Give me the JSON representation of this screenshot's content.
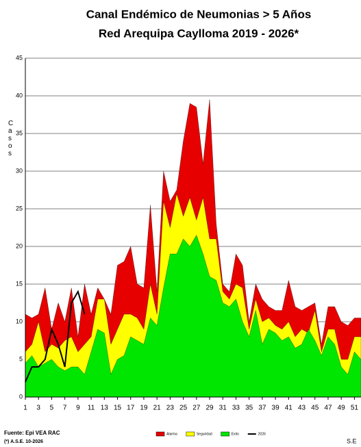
{
  "chart_data": {
    "type": "area",
    "title": "Canal Endémico de Neumonias > 5 Años",
    "subtitle": "Red Arequipa Caylloma 2019 - 2026*",
    "y_label": "Casos",
    "x_label": "S.E",
    "source": "Fuente: Epi VEA RAC",
    "note": "(*) A.S.E. 10-2026",
    "x": [
      1,
      2,
      3,
      4,
      5,
      6,
      7,
      8,
      9,
      10,
      11,
      12,
      13,
      14,
      15,
      16,
      17,
      18,
      19,
      20,
      21,
      22,
      23,
      24,
      25,
      26,
      27,
      28,
      29,
      30,
      31,
      32,
      33,
      34,
      35,
      36,
      37,
      38,
      39,
      40,
      41,
      42,
      43,
      44,
      45,
      46,
      47,
      48,
      49,
      50,
      51,
      52
    ],
    "xlim": [
      1,
      52
    ],
    "xticks": [
      1,
      3,
      5,
      7,
      9,
      11,
      13,
      15,
      17,
      19,
      21,
      23,
      25,
      27,
      29,
      31,
      33,
      35,
      37,
      39,
      41,
      43,
      45,
      47,
      49,
      51
    ],
    "ylim": [
      0,
      45
    ],
    "yticks": [
      0,
      5,
      10,
      15,
      20,
      25,
      30,
      35,
      40,
      45
    ],
    "grid": true,
    "series": [
      {
        "name": "Alarma",
        "color": "#e60000",
        "values": [
          11,
          10.5,
          11,
          14.5,
          9,
          12.5,
          10,
          14.5,
          8,
          15,
          11,
          14.5,
          13,
          11,
          17.5,
          18,
          20,
          15,
          14.5,
          25.5,
          14,
          30,
          26,
          27.5,
          34,
          39,
          38.5,
          31,
          39.5,
          23,
          15,
          14,
          19,
          17.5,
          10,
          15,
          13,
          12,
          11.5,
          11.5,
          15.5,
          12,
          11.5,
          12,
          12.5,
          7,
          12,
          12,
          10,
          9.5,
          10.5,
          10.5
        ]
      },
      {
        "name": "Seguridad",
        "color": "#ffff00",
        "values": [
          6,
          7,
          10,
          6,
          7,
          6.5,
          7.5,
          8,
          6,
          7,
          8,
          13,
          13,
          7,
          9,
          11,
          11,
          10.5,
          9,
          15,
          11,
          26,
          22.5,
          27,
          24,
          26.5,
          23.5,
          26.5,
          21,
          21,
          14,
          13,
          15,
          14.5,
          9,
          13,
          10,
          10.5,
          9.5,
          9,
          10,
          8,
          9,
          8.5,
          11.5,
          6,
          9,
          9,
          5,
          5,
          8,
          8
        ]
      },
      {
        "name": "Exito",
        "color": "#00e600",
        "values": [
          4.5,
          5.5,
          4,
          4.5,
          5,
          4,
          3.5,
          4,
          4,
          3,
          6,
          9,
          8.5,
          3,
          5,
          5.5,
          8,
          7.5,
          7,
          10.5,
          9.5,
          14.5,
          19,
          19,
          21,
          20,
          21.5,
          19,
          16,
          15.5,
          12.5,
          12,
          13,
          10,
          8,
          11.5,
          7,
          9,
          8.5,
          7.5,
          8,
          6.5,
          7,
          9,
          7.5,
          5.5,
          8,
          7,
          4,
          3,
          6,
          5
        ]
      },
      {
        "name": "2026",
        "color": "#000000",
        "line": true,
        "values": [
          2,
          4,
          4,
          5,
          9,
          7,
          4,
          12.5,
          14,
          11,
          null,
          null,
          null,
          null,
          null,
          null,
          null,
          null,
          null,
          null,
          null,
          null,
          null,
          null,
          null,
          null,
          null,
          null,
          null,
          null,
          null,
          null,
          null,
          null,
          null,
          null,
          null,
          null,
          null,
          null,
          null,
          null,
          null,
          null,
          null,
          null,
          null,
          null,
          null,
          null,
          null,
          null
        ]
      }
    ]
  }
}
